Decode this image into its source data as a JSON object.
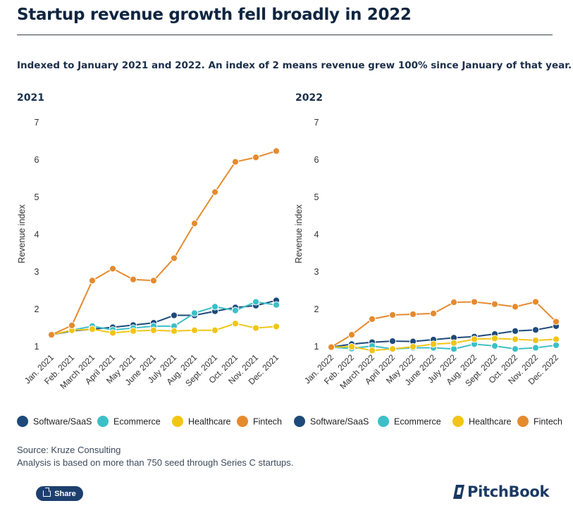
{
  "header": {
    "title": "Startup revenue growth fell broadly in 2022",
    "subtitle": "Indexed to January 2021 and 2022. An index of 2 means revenue grew 100% since January of that year."
  },
  "colors": {
    "Software/SaaS": "#1d4a7a",
    "Ecommerce": "#3dbfc7",
    "Healthcare": "#f2c514",
    "Fintech": "#e68a2e"
  },
  "chart_data": [
    {
      "type": "line",
      "title": "2021",
      "ylabel": "Revenue index",
      "ylim": [
        1,
        7
      ],
      "yticks": [
        "1",
        "2",
        "3",
        "4",
        "5",
        "6",
        "7"
      ],
      "categories": [
        "Jan. 2021",
        "Feb. 2021",
        "March 2021",
        "April 2021",
        "May 2021",
        "June 2021",
        "July 2021",
        "Aug. 2021",
        "Sept. 2021",
        "Oct. 2021",
        "Nov. 2021",
        "Dec. 2021"
      ],
      "legend": "bottom",
      "series": [
        {
          "name": "Software/SaaS",
          "values": [
            1.3,
            1.4,
            1.45,
            1.5,
            1.56,
            1.62,
            1.82,
            1.82,
            1.93,
            2.03,
            2.08,
            2.22
          ]
        },
        {
          "name": "Ecommerce",
          "values": [
            1.3,
            1.42,
            1.53,
            1.43,
            1.48,
            1.53,
            1.53,
            1.88,
            2.05,
            1.95,
            2.18,
            2.1
          ]
        },
        {
          "name": "Healthcare",
          "values": [
            1.3,
            1.42,
            1.45,
            1.35,
            1.4,
            1.42,
            1.4,
            1.42,
            1.42,
            1.6,
            1.48,
            1.52
          ]
        },
        {
          "name": "Fintech",
          "values": [
            1.3,
            1.55,
            2.75,
            3.07,
            2.78,
            2.75,
            3.35,
            4.28,
            5.12,
            5.93,
            6.05,
            6.22
          ]
        }
      ]
    },
    {
      "type": "line",
      "title": "2022",
      "ylabel": "Revenue index",
      "ylim": [
        1,
        7
      ],
      "yticks": [
        "1",
        "2",
        "3",
        "4",
        "5",
        "6",
        "7"
      ],
      "categories": [
        "Jan. 2022",
        "Feb. 2022",
        "March 2022",
        "April 2022",
        "May 2022",
        "June 2022",
        "July 2022",
        "Aug. 2022",
        "Sept. 2022",
        "Oct. 2022",
        "Nov. 2022",
        "Dec. 2022"
      ],
      "legend": "bottom",
      "series": [
        {
          "name": "Software/SaaS",
          "values": [
            0.97,
            1.05,
            1.1,
            1.13,
            1.12,
            1.17,
            1.22,
            1.25,
            1.32,
            1.4,
            1.43,
            1.53
          ]
        },
        {
          "name": "Ecommerce",
          "values": [
            0.97,
            0.93,
            1.0,
            0.92,
            0.95,
            0.95,
            0.92,
            1.05,
            1.0,
            0.92,
            0.95,
            1.02
          ]
        },
        {
          "name": "Healthcare",
          "values": [
            0.97,
            0.98,
            0.88,
            0.92,
            0.98,
            1.05,
            1.08,
            1.18,
            1.2,
            1.18,
            1.15,
            1.18
          ]
        },
        {
          "name": "Fintech",
          "values": [
            0.97,
            1.3,
            1.72,
            1.83,
            1.85,
            1.87,
            2.17,
            2.18,
            2.12,
            2.05,
            2.18,
            1.65
          ]
        }
      ]
    }
  ],
  "footer": {
    "source": "Source: Kruze Consulting",
    "note": "Analysis is based on more than 750 seed through Series C startups.",
    "share_label": "Share",
    "logo_text": "PitchBook"
  }
}
